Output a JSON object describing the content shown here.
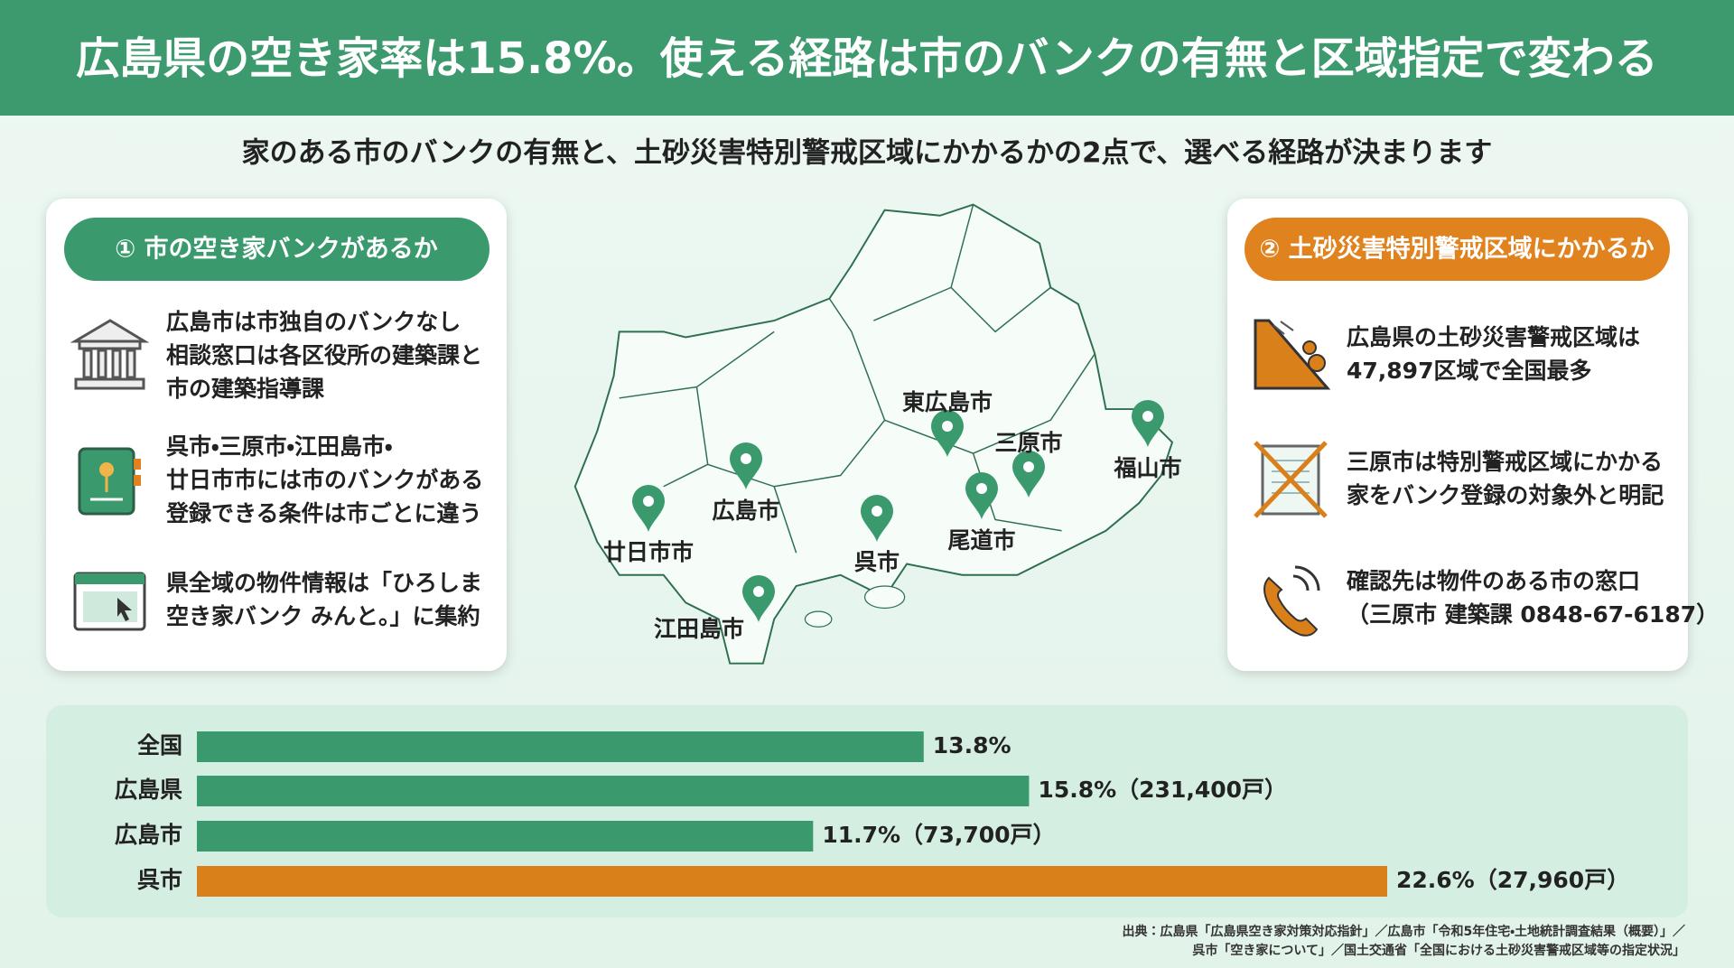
{
  "header": {
    "title": "広島県の空き家率は15.8%。使える経路は市のバンクの有無と区域指定で変わる"
  },
  "subtitle": "家のある市のバンクの有無と、土砂災害特別警戒区域にかかるかの2点で、選べる経路が決まります",
  "left_panel": {
    "heading": "① 市の空き家バンクがあるか",
    "items": [
      {
        "lines": [
          "広島市は市独自のバンクなし",
          "相談窓口は各区役所の建築課と",
          "市の建築指導課"
        ]
      },
      {
        "lines": [
          "呉市・三原市・江田島市・",
          "廿日市市には市のバンクがある",
          "登録できる条件は市ごとに違う"
        ]
      },
      {
        "lines": [
          "県全域の物件情報は「ひろしま",
          "空き家バンク みんと。」に集約"
        ]
      }
    ]
  },
  "map": {
    "cities": [
      "東広島市",
      "三原市",
      "福山市",
      "広島市",
      "尾道市",
      "呉市",
      "廿日市市",
      "江田島市"
    ]
  },
  "right_panel": {
    "heading": "② 土砂災害特別警戒区域にかかるか",
    "items": [
      {
        "lines": [
          "広島県の土砂災害警戒区域は",
          "47,897区域で全国最多"
        ]
      },
      {
        "lines": [
          "三原市は特別警戒区域にかかる",
          "家をバンク登録の対象外と明記"
        ]
      },
      {
        "lines": [
          "確認先は物件のある市の窓口",
          "（三原市 建築課 0848-67-6187）"
        ]
      }
    ]
  },
  "chart_data": {
    "type": "bar",
    "orientation": "horizontal",
    "categories": [
      "全国",
      "広島県",
      "広島市",
      "呉市"
    ],
    "values": [
      13.8,
      15.8,
      11.7,
      22.6
    ],
    "value_labels": [
      "13.8%",
      "15.8%（231,400戸）",
      "11.7%（73,700戸）",
      "22.6%（27,960戸）"
    ],
    "colors": [
      "#3a9a6e",
      "#3a9a6e",
      "#3a9a6e",
      "#d9801a"
    ]
  },
  "sources": [
    "出典：広島県「広島県空き家対策対応指針」／広島市「令和5年住宅・土地統計調査結果（概要）」／",
    "呉市「空き家について」／国土交通省「全国における土砂災害警戒区域等の指定状況」"
  ]
}
